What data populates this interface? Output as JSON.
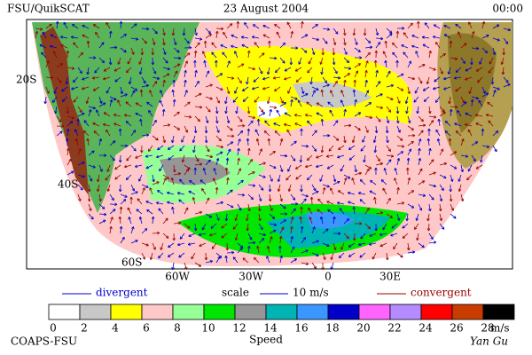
{
  "header": {
    "left": "FSU/QuikSCAT",
    "center": "23 August 2004",
    "right": "00:00"
  },
  "map": {
    "lat_labels": [
      "20S",
      "40S",
      "60S"
    ],
    "lon_labels": [
      "60W",
      "30W",
      "0",
      "30E"
    ]
  },
  "legend": {
    "divergent": "divergent",
    "scale": "scale",
    "scale_value": "10 m/s",
    "convergent": "convergent",
    "divergent_color": "#0000cc",
    "convergent_color": "#990000"
  },
  "colorbar": {
    "colors": [
      "#ffffff",
      "#c8c8c8",
      "#ffff00",
      "#ffc8c8",
      "#96ff96",
      "#00e600",
      "#969696",
      "#00b4b4",
      "#3c96ff",
      "#0000c8",
      "#ff64ff",
      "#b48cff",
      "#ff0000",
      "#c83c00",
      "#000000"
    ],
    "ticks": [
      0,
      2,
      4,
      6,
      8,
      10,
      12,
      14,
      16,
      18,
      20,
      22,
      24,
      26,
      28
    ],
    "unit": "m/s",
    "title": "Speed"
  },
  "footer": {
    "left": "COAPS-FSU",
    "right": "Yan Gu"
  }
}
